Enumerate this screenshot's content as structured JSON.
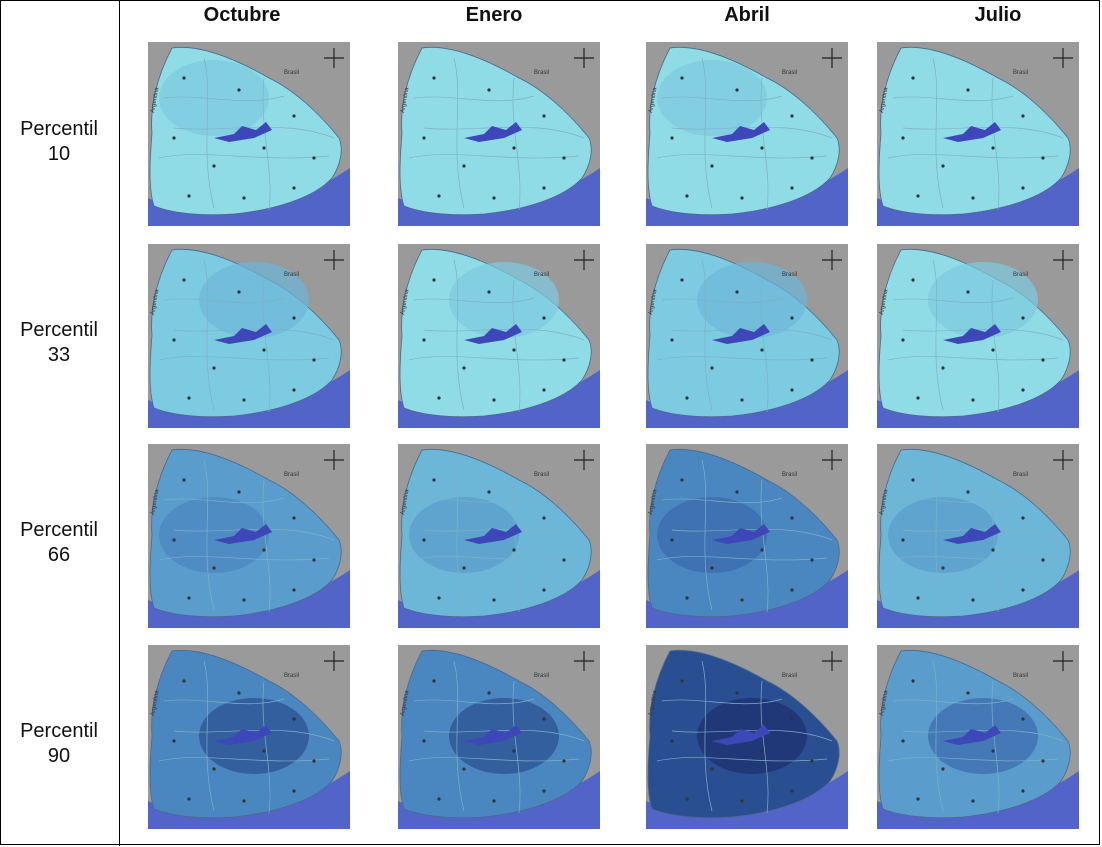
{
  "columns": [
    "Octubre",
    "Enero",
    "Abril",
    "Julio"
  ],
  "rows": [
    {
      "line1": "Percentil",
      "line2": "10"
    },
    {
      "line1": "Percentil",
      "line2": "33"
    },
    {
      "line1": "Percentil",
      "line2": "66"
    },
    {
      "line1": "Percentil",
      "line2": "90"
    }
  ],
  "map_labels": {
    "neighbor_west": "Argentina",
    "neighbor_north": "Brasil"
  },
  "colors": {
    "sea": "#5264c7",
    "land_neighbors": "#9a9a9a",
    "lake": "#3d47b8",
    "river_lines": "#7fb0c4",
    "shade_levels": [
      "#8fdbe6",
      "#7dcbe0",
      "#6cb6d8",
      "#5a9ccc",
      "#4a86c0",
      "#3a6aac",
      "#2a4e92",
      "#1c2f6e"
    ]
  },
  "panels": [
    [
      {
        "shade": 0,
        "accent": 1
      },
      {
        "shade": 0,
        "accent": 0
      },
      {
        "shade": 0,
        "accent": 1
      },
      {
        "shade": 0,
        "accent": 0
      }
    ],
    [
      {
        "shade": 1,
        "accent": 2
      },
      {
        "shade": 0,
        "accent": 1
      },
      {
        "shade": 1,
        "accent": 2
      },
      {
        "shade": 0,
        "accent": 1
      }
    ],
    [
      {
        "shade": 3,
        "accent": 4
      },
      {
        "shade": 2,
        "accent": 3
      },
      {
        "shade": 4,
        "accent": 5
      },
      {
        "shade": 2,
        "accent": 3
      }
    ],
    [
      {
        "shade": 4,
        "accent": 6
      },
      {
        "shade": 4,
        "accent": 6
      },
      {
        "shade": 6,
        "accent": 7
      },
      {
        "shade": 3,
        "accent": 5
      }
    ]
  ]
}
